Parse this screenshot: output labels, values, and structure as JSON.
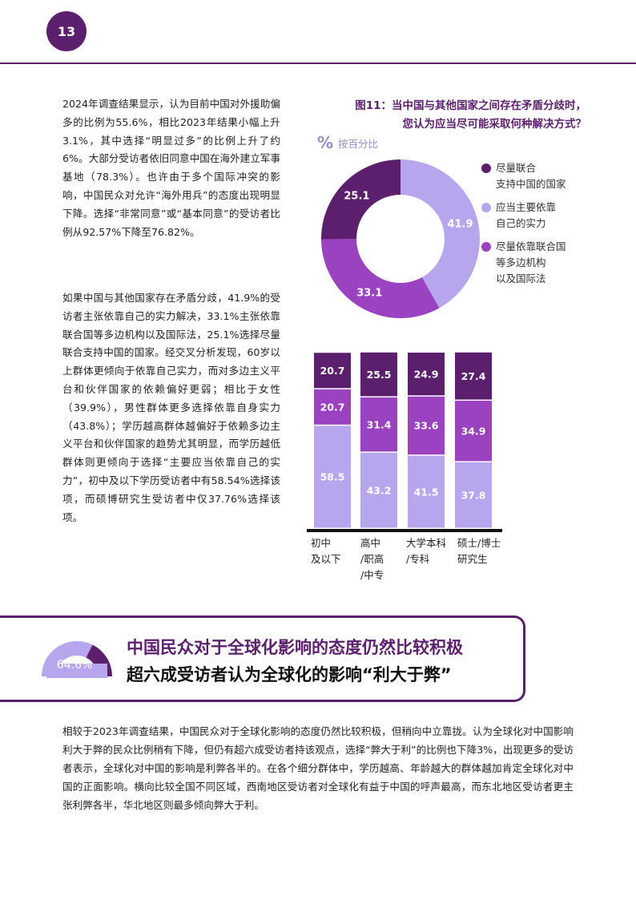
{
  "page_number": "13",
  "left_column": {
    "paragraph1": "2024年调查结果显示，认为目前中国对外援助偏多的比例为55.6%，相比2023年结果小幅上升3.1%，其中选择“明显过多”的比例上升了约6%。大部分受访者依旧同意中国在海外建立军事基地（78.3%）。也许由于多个国际冲突的影响，中国民众对允许“海外用兵”的态度出现明显下降。选择“非常同意”或“基本同意”的受访者比例从92.57%下降至76.82%。",
    "paragraph2": "如果中国与其他国家存在矛盾分歧，41.9%的受访者主张依靠自己的实力解决，33.1%主张依靠联合国等多边机构以及国际法，25.1%选择尽量联合支持中国的国家。经交叉分析发现，60岁以上群体更倾向于依靠自己实力，而对多边主义平台和伙伴国家的依赖偏好更弱；相比于女性（39.9%），男性群体更多选择依靠自身实力（43.8%）；学历越高群体越偏好于依赖多边主义平台和伙伴国家的趋势尤其明显，而学历越低群体则更倾向于选择“主要应当依靠自己的实力”，初中及以下学历受访者中有58.54%选择该项，而硕博研究生受访者中仅37.76%选择该项。"
  },
  "figure": {
    "title_line1": "图11：当中国与其他国家之间存在矛盾分歧时，",
    "title_line2": "您认为应当尽可能采取何种解决方式？",
    "unit_icon": "%",
    "unit_label": "按百分比"
  },
  "colors": {
    "dark_purple": "#5c1f6e",
    "mid_purple": "#9a42c0",
    "light_purple": "#b7a6ee"
  },
  "chart_data": [
    {
      "type": "pie",
      "donut": true,
      "slices": [
        {
          "label": "应当主要依靠自己的实力",
          "value": 41.9,
          "color": "#b7a6ee"
        },
        {
          "label": "尽量依靠联合国等多边机构以及国际法",
          "value": 33.1,
          "color": "#9a42c0"
        },
        {
          "label": "尽量联合支持中国的国家",
          "value": 25.1,
          "color": "#5c1f6e"
        }
      ],
      "legend": [
        {
          "label": "尽量联合\n支持中国的国家",
          "color": "#5c1f6e"
        },
        {
          "label": "应当主要依靠\n自己的实力",
          "color": "#b7a6ee"
        },
        {
          "label": "尽量依靠联合国\n等多边机构\n以及国际法",
          "color": "#9a42c0"
        }
      ],
      "legend_position": "right"
    },
    {
      "type": "bar",
      "stacked": true,
      "categories": [
        "初中\n及以下",
        "高中\n/职高\n/中专",
        "大学本科\n/专科",
        "硕士/博士\n研究生"
      ],
      "series": [
        {
          "name": "应当主要依靠自己的实力",
          "color": "#b7a6ee",
          "values": [
            58.5,
            43.2,
            41.5,
            37.8
          ]
        },
        {
          "name": "尽量依靠联合国等多边机构以及国际法",
          "color": "#9a42c0",
          "values": [
            20.7,
            31.4,
            33.6,
            34.9
          ]
        },
        {
          "name": "尽量联合支持中国的国家",
          "color": "#5c1f6e",
          "values": [
            20.7,
            25.5,
            24.9,
            27.4
          ]
        }
      ],
      "ylim": [
        0,
        100
      ]
    }
  ],
  "section": {
    "gauge_value": 64.6,
    "gauge_label": "64.6%",
    "headline1": "中国民众对于全球化影响的态度仍然比较积极",
    "headline2": "超六成受访者认为全球化的影响“利大于弊”",
    "paragraph": "相较于2023年调查结果，中国民众对于全球化影响的态度仍然比较积极，但稍向中立靠拢。认为全球化对中国影响利大于弊的民众比例稍有下降，但仍有超六成受访者持该观点，选择“弊大于利”的比例也下降3%，出现更多的受访者表示，全球化对中国的影响是利弊各半的。在各个细分群体中，学历越高、年龄越大的群体越加肯定全球化对中国的正面影响。横向比较全国不同区域，西南地区受访者对全球化有益于中国的呼声最高，而东北地区受访者更主张利弊各半，华北地区则最多倾向弊大于利。"
  }
}
